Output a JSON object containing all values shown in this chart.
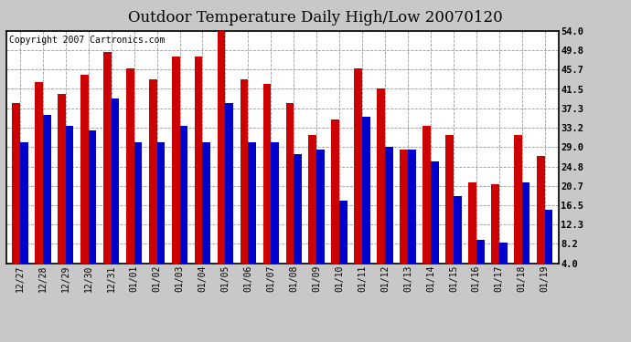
{
  "title": "Outdoor Temperature Daily High/Low 20070120",
  "copyright": "Copyright 2007 Cartronics.com",
  "labels": [
    "12/27",
    "12/28",
    "12/29",
    "12/30",
    "12/31",
    "01/01",
    "01/02",
    "01/03",
    "01/04",
    "01/05",
    "01/06",
    "01/07",
    "01/08",
    "01/09",
    "01/10",
    "01/11",
    "01/12",
    "01/13",
    "01/14",
    "01/15",
    "01/16",
    "01/17",
    "01/18",
    "01/19"
  ],
  "highs": [
    38.5,
    43.0,
    40.5,
    44.5,
    49.5,
    46.0,
    43.5,
    48.5,
    48.5,
    54.0,
    43.5,
    42.5,
    38.5,
    31.5,
    35.0,
    46.0,
    41.5,
    28.5,
    33.5,
    31.5,
    21.5,
    21.0,
    31.5,
    27.0
  ],
  "lows": [
    30.0,
    36.0,
    33.5,
    32.5,
    39.5,
    30.0,
    30.0,
    33.5,
    30.0,
    38.5,
    30.0,
    30.0,
    27.5,
    28.5,
    17.5,
    35.5,
    29.0,
    28.5,
    26.0,
    18.5,
    9.0,
    8.5,
    21.5,
    15.5
  ],
  "yticks": [
    4.0,
    8.2,
    12.3,
    16.5,
    20.7,
    24.8,
    29.0,
    33.2,
    37.3,
    41.5,
    45.7,
    49.8,
    54.0
  ],
  "ymin": 4.0,
  "ymax": 54.0,
  "bar_width": 0.35,
  "high_color": "#cc0000",
  "low_color": "#0000cc",
  "bg_color": "#c8c8c8",
  "plot_bg_color": "#ffffff",
  "grid_color": "#999999",
  "title_fontsize": 12,
  "copyright_fontsize": 7
}
